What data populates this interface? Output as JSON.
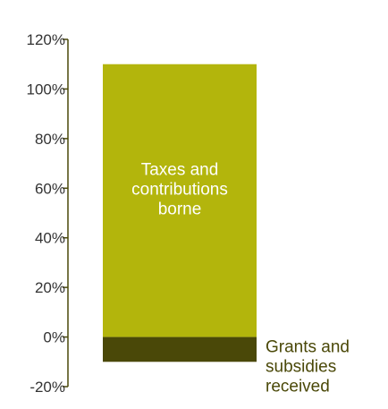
{
  "chart_data": {
    "type": "bar",
    "stacked": true,
    "categories": [
      ""
    ],
    "series": [
      {
        "name": "Taxes and contributions borne",
        "label_lines": [
          "Taxes and",
          "contributions",
          "borne"
        ],
        "values": [
          110
        ],
        "color": "#b3b50c",
        "label_color": "#ffffff",
        "label_position": "inside"
      },
      {
        "name": "Grants and subsidies received",
        "label_lines": [
          "Grants and",
          "subsidies",
          "received"
        ],
        "values": [
          -10
        ],
        "color": "#4a4808",
        "label_color": "#4a4808",
        "label_position": "right"
      }
    ],
    "title": "",
    "xlabel": "",
    "ylabel": "",
    "ylim": [
      -20,
      120
    ],
    "yticks": [
      -20,
      0,
      20,
      40,
      60,
      80,
      100,
      120
    ],
    "ytick_format": "percent",
    "axis_color": "#4a4808",
    "grid": false,
    "legend": "none"
  }
}
